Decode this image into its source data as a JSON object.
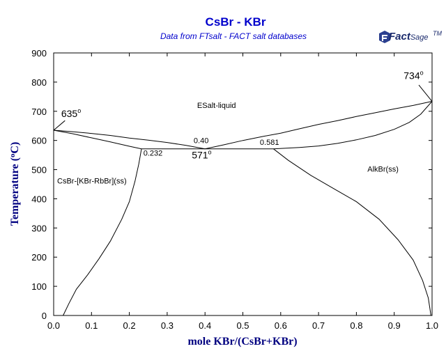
{
  "chart_data": {
    "type": "line",
    "title": "CsBr - KBr",
    "subtitle": "Data from FTsalt - FACT salt databases",
    "logo": {
      "fact": "Fact",
      "sage": "Sage",
      "mark": "TM"
    },
    "xlabel": "mole KBr/(CsBr+KBr)",
    "ylabel_prefix": "Temperature (",
    "ylabel_degree": "o",
    "ylabel_suffix": "C)",
    "xlim": [
      0,
      1
    ],
    "ylim": [
      0,
      900
    ],
    "x_ticks": [
      "0.0",
      "0.1",
      "0.2",
      "0.3",
      "0.4",
      "0.5",
      "0.6",
      "0.7",
      "0.8",
      "0.9",
      "1.0"
    ],
    "y_ticks": [
      "0",
      "100",
      "200",
      "300",
      "400",
      "500",
      "600",
      "700",
      "800",
      "900"
    ],
    "grid": false,
    "series": [
      {
        "x": [
          0.0,
          0.05,
          0.1,
          0.15,
          0.2,
          0.25,
          0.3,
          0.35,
          0.4
        ],
        "y": [
          635,
          630,
          624,
          617,
          608,
          601,
          593,
          583,
          571
        ]
      },
      {
        "x": [
          0.0,
          0.05,
          0.1,
          0.15,
          0.2,
          0.232
        ],
        "y": [
          635,
          623,
          609,
          595,
          580,
          571
        ]
      },
      {
        "x": [
          0.4,
          0.45,
          0.5,
          0.55,
          0.6,
          0.65,
          0.7,
          0.75,
          0.8,
          0.85,
          0.9,
          0.95,
          1.0
        ],
        "y": [
          571,
          585,
          600,
          613,
          625,
          640,
          655,
          668,
          682,
          695,
          708,
          720,
          734
        ]
      },
      {
        "x": [
          0.581,
          0.65,
          0.7,
          0.75,
          0.8,
          0.85,
          0.9,
          0.94,
          0.97,
          1.0
        ],
        "y": [
          571,
          576,
          581,
          590,
          602,
          617,
          638,
          662,
          690,
          734
        ]
      },
      {
        "x": [
          0.232,
          0.581
        ],
        "y": [
          571,
          571
        ]
      },
      {
        "x": [
          0.232,
          0.225,
          0.215,
          0.2,
          0.18,
          0.15,
          0.12,
          0.09,
          0.06,
          0.04,
          0.025
        ],
        "y": [
          571,
          520,
          460,
          390,
          330,
          255,
          195,
          140,
          90,
          40,
          0
        ]
      },
      {
        "x": [
          0.581,
          0.62,
          0.68,
          0.74,
          0.8,
          0.86,
          0.91,
          0.95,
          0.975,
          0.99,
          0.997
        ],
        "y": [
          571,
          532,
          480,
          435,
          390,
          330,
          260,
          190,
          120,
          60,
          0
        ]
      }
    ],
    "annotations": {
      "temperatures": [
        {
          "text": "635",
          "deg": "o",
          "x": 0.02,
          "y": 680
        },
        {
          "text": "734",
          "deg": "o",
          "x": 0.925,
          "y": 810
        },
        {
          "text": "571",
          "deg": "o",
          "x": 0.365,
          "y": 538
        }
      ],
      "compositions": [
        {
          "text": "0.40",
          "x": 0.37,
          "y": 591
        },
        {
          "text": "0.581",
          "x": 0.545,
          "y": 585
        },
        {
          "text": "0.232",
          "x": 0.237,
          "y": 548
        }
      ],
      "regions": [
        {
          "text": "ESalt-liquid",
          "x": 0.37,
          "y": 712
        },
        {
          "text": "CsBr-[KBr-RbBr](ss)",
          "x": 0.0,
          "y": 452
        },
        {
          "text": "AlkBr(ss)",
          "x": 0.82,
          "y": 493
        }
      ]
    }
  }
}
